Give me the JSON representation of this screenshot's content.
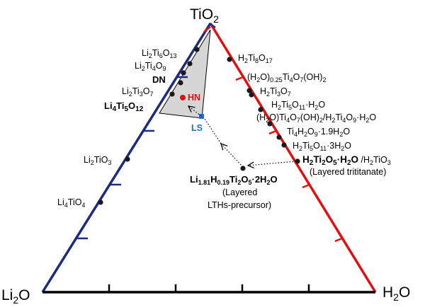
{
  "colors": {
    "left_edge": "#1c2a80",
    "right_edge": "#e01010",
    "bottom_edge": "#000000",
    "ln_point": "#e01010",
    "ls_point": "#1f6fc0",
    "region_fill": "#d6d6d6"
  },
  "vertices": {
    "top": "TiO2",
    "left": "Li2O",
    "right": "H2O"
  },
  "left_edge_compounds": [
    {
      "formula": "Li2Ti6O13",
      "bold": false
    },
    {
      "formula": "Li2Ti4O9",
      "bold": false
    },
    {
      "formula": "Li2Ti3O7",
      "bold": false
    },
    {
      "formula": "Li4Ti5O12",
      "bold": true
    },
    {
      "formula": "Li2TiO3",
      "bold": false
    },
    {
      "formula": "Li4TiO4",
      "bold": false
    }
  ],
  "right_edge_compounds": [
    {
      "formula": "H2Ti8O17",
      "bold": false
    },
    {
      "formula": "(H2O)0.25Ti4O7(OH)2",
      "bold": false
    },
    {
      "formula": "H2Ti3O7",
      "bold": false
    },
    {
      "formula": "H2Ti5O11·H2O",
      "bold": false
    },
    {
      "formula": "(H2O)Ti4O7(OH)2/H2Ti4O9·H2O",
      "bold": false
    },
    {
      "formula": "Ti4H2O9·1.9H2O",
      "bold": false
    },
    {
      "formula": "H2Ti5O11·3H2O",
      "bold": false
    },
    {
      "formula": "H2Ti2O5·H2O /H2TiO3",
      "bold": true
    }
  ],
  "annotations": {
    "dn": "DN",
    "hn": "HN",
    "ls": "LS",
    "layered_trititanate": "(Layered trititanate)",
    "precursor_formula": "Li1.81H0.19Ti2O5·2H2O",
    "precursor_desc_1": "(Layered",
    "precursor_desc_2": "LTHs-precursor)"
  }
}
